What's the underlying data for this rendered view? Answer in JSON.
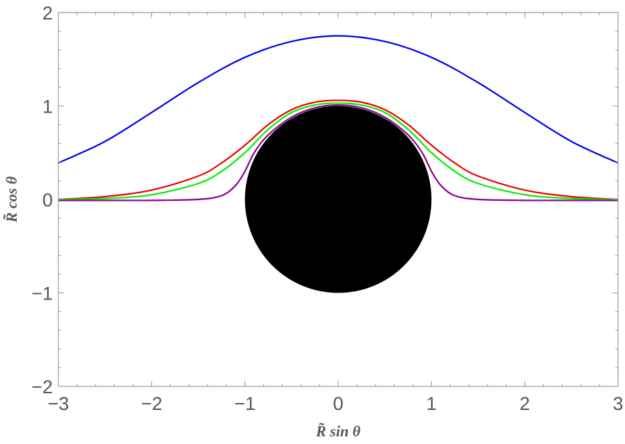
{
  "chart_data": {
    "type": "line",
    "title": "",
    "xlabel": "R̃ sin θ",
    "ylabel": "R̃ cos θ",
    "xlim": [
      -3,
      3
    ],
    "ylim": [
      -2,
      2
    ],
    "x_ticks": [
      -3,
      -2,
      -1,
      0,
      1,
      2,
      3
    ],
    "y_ticks": [
      -2,
      -1,
      0,
      1,
      2
    ],
    "x_tick_labels": [
      "−3",
      "−2",
      "−1",
      "0",
      "1",
      "2",
      "3"
    ],
    "y_tick_labels": [
      "−2",
      "−1",
      "0",
      "1",
      "2"
    ],
    "disk": {
      "center": [
        0,
        0
      ],
      "radius": 1,
      "color": "#000000",
      "label": "black disk of radius 1"
    },
    "series": [
      {
        "name": "blue",
        "color": "#0000ee",
        "x": [
          -3,
          -2.5,
          -2,
          -1.5,
          -1,
          -0.5,
          0,
          0.5,
          1,
          1.5,
          2,
          2.5,
          3
        ],
        "y": [
          0.39,
          0.62,
          0.93,
          1.25,
          1.52,
          1.69,
          1.75,
          1.69,
          1.52,
          1.25,
          0.93,
          0.62,
          0.39
        ]
      },
      {
        "name": "red",
        "color": "#ee0000",
        "x": [
          -3,
          -2.5,
          -2,
          -1.5,
          -1.25,
          -1,
          -0.75,
          -0.5,
          -0.25,
          0,
          0.25,
          0.5,
          0.75,
          1,
          1.25,
          1.5,
          2,
          2.5,
          3
        ],
        "y": [
          0.0,
          0.03,
          0.1,
          0.25,
          0.39,
          0.58,
          0.8,
          0.96,
          1.04,
          1.06,
          1.04,
          0.96,
          0.8,
          0.58,
          0.39,
          0.25,
          0.1,
          0.03,
          0.0
        ]
      },
      {
        "name": "green",
        "color": "#00ee00",
        "x": [
          -3,
          -2.5,
          -2,
          -1.5,
          -1.25,
          -1,
          -0.75,
          -0.5,
          -0.25,
          0,
          0.25,
          0.5,
          0.75,
          1,
          1.25,
          1.5,
          2,
          2.5,
          3
        ],
        "y": [
          0.0,
          0.01,
          0.05,
          0.17,
          0.3,
          0.5,
          0.75,
          0.93,
          1.01,
          1.03,
          1.01,
          0.93,
          0.75,
          0.5,
          0.3,
          0.17,
          0.05,
          0.01,
          0.0
        ]
      },
      {
        "name": "purple",
        "color": "#8b008b",
        "x": [
          -3,
          -2.5,
          -2,
          -1.5,
          -1.25,
          -1.1,
          -1,
          -0.9,
          -0.75,
          -0.5,
          -0.25,
          0,
          0.25,
          0.5,
          0.75,
          0.9,
          1,
          1.1,
          1.25,
          1.5,
          2,
          2.5,
          3
        ],
        "y": [
          -0.01,
          -0.01,
          -0.01,
          0.0,
          0.04,
          0.15,
          0.3,
          0.5,
          0.69,
          0.88,
          0.98,
          1.01,
          0.98,
          0.88,
          0.69,
          0.5,
          0.3,
          0.15,
          0.04,
          0.0,
          -0.01,
          -0.01,
          -0.01
        ]
      }
    ]
  }
}
